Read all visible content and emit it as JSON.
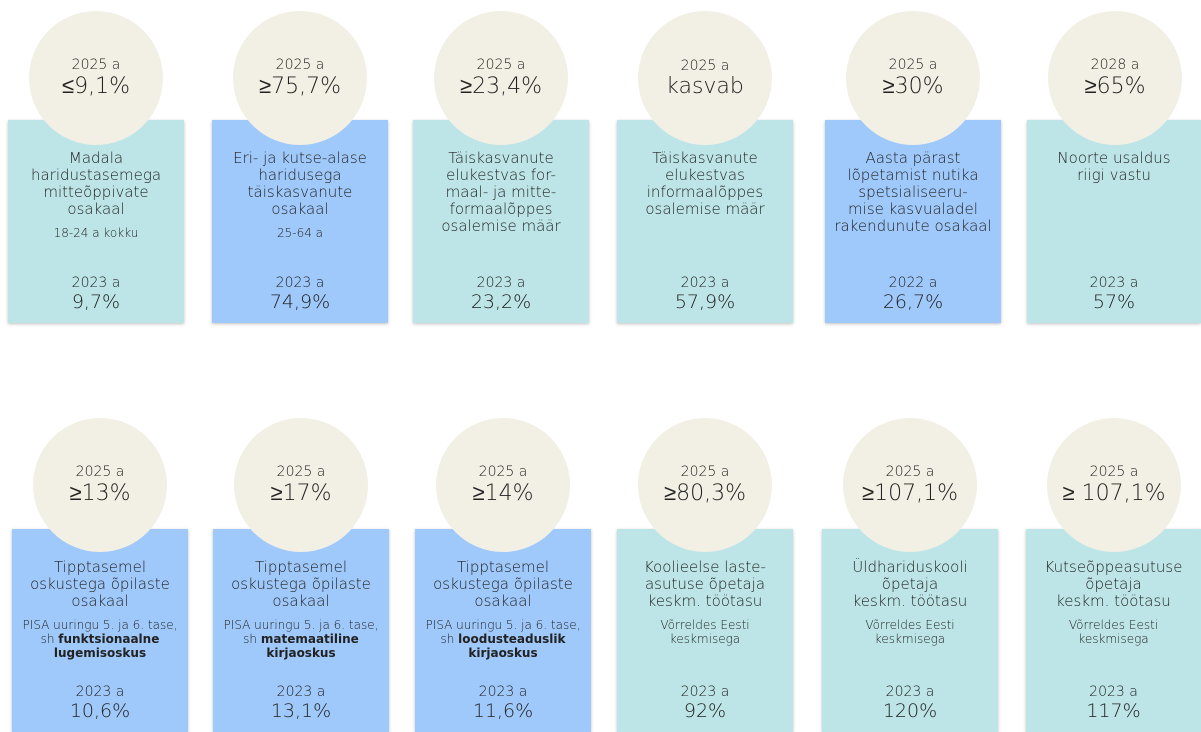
{
  "rows": [
    [
      {
        "color": "#bde5e7",
        "target_year": "2025 a",
        "target": "≤9,1%",
        "title": [
          "Madala",
          "haridustasemega",
          "mitteõppivate",
          "osakaal"
        ],
        "note": [
          "18-24 a kokku"
        ],
        "base_year": "2023 a",
        "base_value": "9,7%"
      },
      {
        "color": "#a0c9fb",
        "target_year": "2025 a",
        "target": "≥75,7%",
        "title": [
          "Eri- ja kutse-alase",
          "haridusega",
          "täiskasvanute",
          "osakaal"
        ],
        "note": [
          "25-64 a"
        ],
        "base_year": "2023 a",
        "base_value": "74,9%"
      },
      {
        "color": "#bde5e7",
        "target_year": "2025 a",
        "target": "≥23,4%",
        "title": [
          "Täiskasvanute",
          "elukestvas for-",
          "maal- ja mitte-",
          "formaalõppes",
          "osalemise määr"
        ],
        "base_year": "2023 a",
        "base_value": "23,2%"
      },
      {
        "color": "#bde5e7",
        "target_year": "2025 a",
        "target": "kasvab",
        "title": [
          "Täiskasvanute",
          "elukestvas",
          "informaalõppes",
          "osalemise määr"
        ],
        "base_year": "2023 a",
        "base_value": "57,9%"
      },
      {
        "color": "#a0c9fb",
        "target_year": "2025 a",
        "target": "≥30%",
        "title": [
          "Aasta pärast",
          "lõpetamist nutika",
          "spetsialiseeru-",
          "mise kasvualadel",
          "rakendunute osakaal"
        ],
        "base_year": "2022 a",
        "base_value": "26,7%"
      },
      {
        "color": "#bde5e7",
        "target_year": "2028 a",
        "target": "≥65%",
        "title": [
          "Noorte usaldus",
          "riigi vastu"
        ],
        "base_year": "2023 a",
        "base_value": "57%"
      }
    ],
    [
      {
        "color": "#a0c9fb",
        "target_year": "2025 a",
        "target": "≥13%",
        "title": [
          "Tipptasemel",
          "oskustega õpilaste",
          "osakaal"
        ],
        "note": [
          "PISA uuringu 5. ja 6. tase,",
          "sh"
        ],
        "note_bold": [
          "funktsionaalne",
          "lugemisoskus"
        ],
        "base_year": "2023 a",
        "base_value": "10,6%"
      },
      {
        "color": "#a0c9fb",
        "target_year": "2025 a",
        "target": "≥17%",
        "title": [
          "Tipptasemel",
          "oskustega õpilaste",
          "osakaal"
        ],
        "note": [
          "PISA uuringu 5. ja 6. tase,",
          "sh"
        ],
        "note_bold": [
          "matemaatiline",
          "kirjaoskus"
        ],
        "base_year": "2023 a",
        "base_value": "13,1%"
      },
      {
        "color": "#a0c9fb",
        "target_year": "2025 a",
        "target": "≥14%",
        "title": [
          "Tipptasemel",
          "oskustega õpilaste",
          "osakaal"
        ],
        "note": [
          "PISA uuringu 5. ja 6. tase,",
          "sh"
        ],
        "note_bold": [
          "loodusteaduslik",
          "kirjaoskus"
        ],
        "base_year": "2023 a",
        "base_value": "11,6%"
      },
      {
        "color": "#bde5e7",
        "target_year": "2025 a",
        "target": "≥80,3%",
        "title": [
          "Koolieelse laste-",
          "asutuse õpetaja",
          "keskm. töötasu"
        ],
        "note": [
          "Võrreldes Eesti",
          "keskmisega"
        ],
        "base_year": "2023 a",
        "base_value": "92%"
      },
      {
        "color": "#bde5e7",
        "target_year": "2025 a",
        "target": "≥107,1%",
        "title": [
          "Üldhariduskooli",
          "õpetaja",
          "keskm. töötasu"
        ],
        "note": [
          "Võrreldes Eesti",
          "keskmisega"
        ],
        "base_year": "2023 a",
        "base_value": "120%"
      },
      {
        "color": "#bde5e7",
        "target_year": "2025 a",
        "target": "≥ 107,1%",
        "title": [
          "Kutseõppeasutuse",
          "õpetaja",
          "keskm. töötasu"
        ],
        "note": [
          "Võrreldes Eesti",
          "keskmisega"
        ],
        "base_year": "2023 a",
        "base_value": "117%"
      }
    ]
  ]
}
